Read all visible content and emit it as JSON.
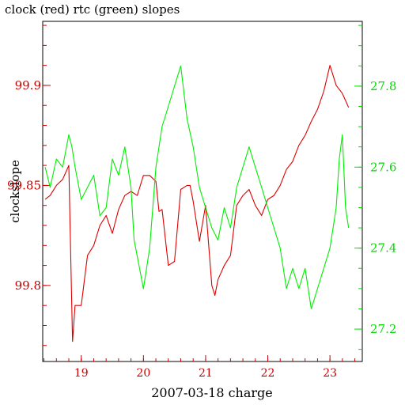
{
  "chart_data": {
    "type": "line",
    "title": "clock (red) rtc (green) slopes",
    "xlabel": "2007-03-18 charge",
    "ylabel": "clockslope",
    "xlim": [
      18.38,
      23.52
    ],
    "ylim_left": [
      99.762,
      99.932
    ],
    "ylim_right": [
      27.12,
      27.96
    ],
    "x_ticks": [
      19,
      20,
      21,
      22,
      23
    ],
    "x_tick_labels": [
      "19",
      "20",
      "21",
      "22",
      "23"
    ],
    "y_left_ticks": [
      99.8,
      99.85,
      99.9
    ],
    "y_left_tick_labels": [
      "99.8",
      "99.85",
      "99.9"
    ],
    "y_right_ticks": [
      27.2,
      27.4,
      27.6,
      27.8
    ],
    "y_right_tick_labels": [
      "27.2",
      "27.4",
      "27.6",
      "27.8"
    ],
    "colors": {
      "clock": "#dd0000",
      "rtc": "#00ee00",
      "axes": "#000000",
      "left_ticks": "#cc0000",
      "right_ticks": "#00dd00"
    },
    "series": [
      {
        "axis": "left",
        "color": "#dd0000",
        "x": [
          18.42,
          18.5,
          18.6,
          18.7,
          18.8,
          18.86,
          18.9,
          18.95,
          19.0,
          19.1,
          19.2,
          19.3,
          19.4,
          19.5,
          19.6,
          19.7,
          19.8,
          19.9,
          20.0,
          20.1,
          20.2,
          20.25,
          20.3,
          20.4,
          20.5,
          20.6,
          20.7,
          20.75,
          20.8,
          20.9,
          21.0,
          21.1,
          21.15,
          21.2,
          21.3,
          21.4,
          21.5,
          21.6,
          21.7,
          21.8,
          21.9,
          22.0,
          22.1,
          22.2,
          22.3,
          22.4,
          22.5,
          22.6,
          22.7,
          22.8,
          22.9,
          23.0,
          23.1,
          23.2,
          23.3
        ],
        "y": [
          99.843,
          99.845,
          99.85,
          99.853,
          99.86,
          99.772,
          99.79,
          99.79,
          99.79,
          99.815,
          99.82,
          99.83,
          99.835,
          99.826,
          99.838,
          99.845,
          99.847,
          99.845,
          99.855,
          99.855,
          99.852,
          99.837,
          99.838,
          99.81,
          99.812,
          99.848,
          99.85,
          99.85,
          99.842,
          99.822,
          99.84,
          99.8,
          99.795,
          99.803,
          99.81,
          99.815,
          99.84,
          99.845,
          99.848,
          99.84,
          99.835,
          99.843,
          99.845,
          99.85,
          99.858,
          99.862,
          99.87,
          99.875,
          99.882,
          99.888,
          99.897,
          99.91,
          99.9,
          99.896,
          99.889
        ]
      },
      {
        "axis": "right",
        "color": "#00ee00",
        "x": [
          18.42,
          18.5,
          18.6,
          18.7,
          18.8,
          18.85,
          18.9,
          19.0,
          19.1,
          19.2,
          19.3,
          19.4,
          19.5,
          19.6,
          19.7,
          19.8,
          19.85,
          19.9,
          20.0,
          20.1,
          20.2,
          20.3,
          20.4,
          20.5,
          20.6,
          20.7,
          20.8,
          20.9,
          21.0,
          21.1,
          21.2,
          21.3,
          21.4,
          21.5,
          21.6,
          21.7,
          21.8,
          21.9,
          22.0,
          22.1,
          22.2,
          22.3,
          22.4,
          22.5,
          22.6,
          22.7,
          22.8,
          22.9,
          23.0,
          23.1,
          23.15,
          23.2,
          23.25,
          23.3
        ],
        "y": [
          27.6,
          27.55,
          27.62,
          27.6,
          27.68,
          27.65,
          27.6,
          27.52,
          27.55,
          27.58,
          27.48,
          27.5,
          27.62,
          27.58,
          27.65,
          27.55,
          27.42,
          27.38,
          27.3,
          27.4,
          27.6,
          27.7,
          27.75,
          27.8,
          27.85,
          27.72,
          27.65,
          27.55,
          27.5,
          27.45,
          27.42,
          27.5,
          27.45,
          27.55,
          27.6,
          27.65,
          27.6,
          27.55,
          27.5,
          27.45,
          27.4,
          27.3,
          27.35,
          27.3,
          27.35,
          27.25,
          27.3,
          27.35,
          27.4,
          27.5,
          27.62,
          27.68,
          27.5,
          27.45
        ]
      }
    ]
  }
}
